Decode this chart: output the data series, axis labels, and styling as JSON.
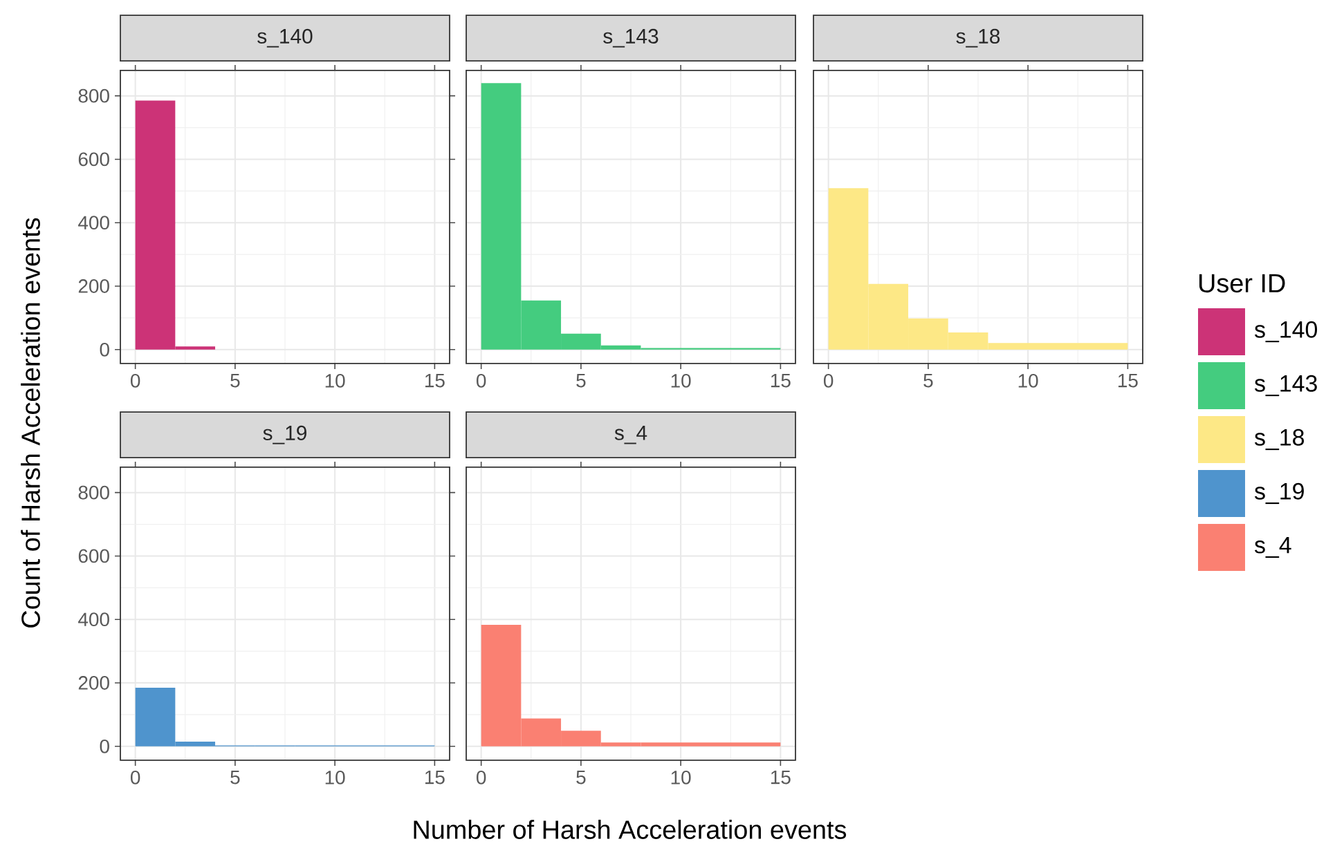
{
  "chart_data": [
    {
      "type": "histogram",
      "title": "s_140",
      "ylabel": "Count of Harsh Acceleration events",
      "legend": "right",
      "legend_title": "User ID",
      "bins": [
        0,
        2,
        4
      ],
      "series": [
        {
          "name": "s_140",
          "color": "#cc3377",
          "values": [
            785,
            10
          ]
        }
      ],
      "xlim": [
        -0.75,
        15.75
      ],
      "xticks": [
        0,
        5,
        10,
        15
      ],
      "ylim": [
        -44,
        880
      ],
      "yticks": [
        0,
        200,
        400,
        600,
        800
      ],
      "grid": true
    },
    {
      "type": "histogram",
      "title": "s_143",
      "legend": "right",
      "bins": [
        0,
        2,
        4,
        6,
        8,
        15
      ],
      "series": [
        {
          "name": "s_143",
          "color": "#44cc7f",
          "values": [
            840,
            155,
            50,
            13,
            5
          ]
        }
      ],
      "xlim": [
        -0.75,
        15.75
      ],
      "xticks": [
        0,
        5,
        10,
        15
      ],
      "ylim": [
        -44,
        880
      ],
      "yticks": [
        0,
        200,
        400,
        600,
        800
      ],
      "grid": true,
      "tick_labels": "x"
    },
    {
      "type": "histogram",
      "title": "s_18",
      "legend": "right",
      "bins": [
        0,
        2,
        4,
        6,
        8,
        15
      ],
      "series": [
        {
          "name": "s_18",
          "color": "#fde886",
          "values": [
            509,
            207,
            98,
            54,
            21
          ]
        }
      ],
      "xlim": [
        -0.75,
        15.75
      ],
      "xticks": [
        0,
        5,
        10,
        15
      ],
      "ylim": [
        -44,
        880
      ],
      "yticks": [
        0,
        200,
        400,
        600,
        800
      ],
      "grid": true,
      "tick_labels": "x"
    },
    {
      "type": "histogram",
      "title": "s_19",
      "legend": "right",
      "bins": [
        0,
        2,
        4,
        6,
        8,
        15
      ],
      "series": [
        {
          "name": "s_19",
          "color": "#4f94cd",
          "values": [
            185,
            15,
            3,
            3,
            3
          ]
        }
      ],
      "xlim": [
        -0.75,
        15.75
      ],
      "xticks": [
        0,
        5,
        10,
        15
      ],
      "ylim": [
        -44,
        880
      ],
      "yticks": [
        0,
        200,
        400,
        600,
        800
      ],
      "grid": true
    },
    {
      "type": "histogram",
      "title": "s_4",
      "xlabel": "Number of Harsh Acceleration events",
      "legend": "right",
      "bins": [
        0,
        2,
        4,
        6,
        8,
        15
      ],
      "series": [
        {
          "name": "s_4",
          "color": "#fa8072",
          "values": [
            383,
            88,
            49,
            12,
            12
          ]
        }
      ],
      "xlim": [
        -0.75,
        15.75
      ],
      "xticks": [
        0,
        5,
        10,
        15
      ],
      "ylim": [
        -44,
        880
      ],
      "yticks": [
        0,
        200,
        400,
        600,
        800
      ],
      "grid": true,
      "tick_labels": "x"
    }
  ]
}
